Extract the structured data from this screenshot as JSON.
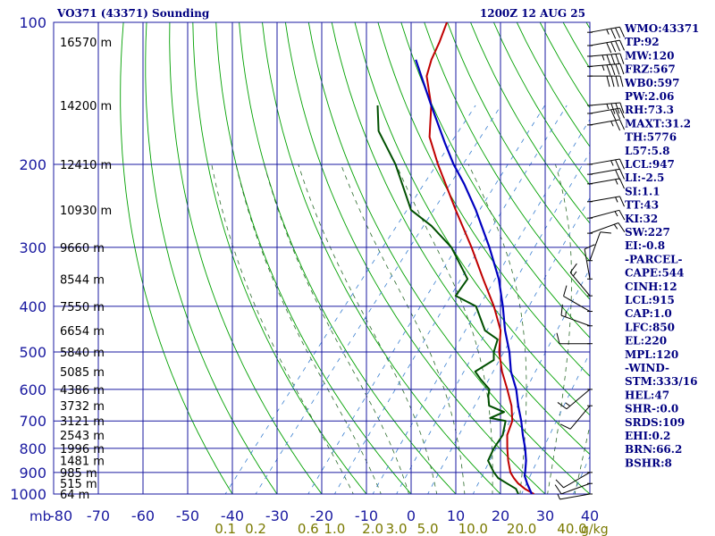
{
  "header": {
    "station": "VO371 (43371) Sounding",
    "time": "1200Z 12 AUG 25"
  },
  "colors": {
    "grid": "#1a1aa0",
    "pressure_label": "#1a1aa0",
    "height_label": "#000000",
    "dry_adiabat": "#00a000",
    "moist_adiabat": "#2a6a2a",
    "mixing_ratio": "#3a7fd0",
    "mixing_ratio_label": "#7a7a00",
    "temperature": "#c00000",
    "dewpoint": "#005000",
    "parcel": "#0000c0",
    "index_text": "#000080",
    "wind_barb": "#000000"
  },
  "chart_data": {
    "type": "line",
    "diagram": "skew-T log-P",
    "x_axis": {
      "unit": "°C",
      "corner_label": "mb",
      "ticks": [
        -80,
        -70,
        -60,
        -50,
        -40,
        -30,
        -20,
        -10,
        0,
        10,
        20,
        30,
        40
      ],
      "tick_labels": [
        "-80",
        "-70",
        "-60",
        "-50",
        "-40",
        "-30",
        "-20",
        "-10",
        "0",
        "10",
        "20",
        "30",
        "40"
      ]
    },
    "y_axis": {
      "unit": "hPa",
      "scale": "log",
      "range": [
        1000,
        100
      ],
      "ticks": [
        100,
        200,
        300,
        400,
        500,
        600,
        700,
        800,
        900,
        1000
      ],
      "tick_labels": [
        "100",
        "200",
        "300",
        "400",
        "500",
        "600",
        "700",
        "800",
        "900",
        "1000"
      ]
    },
    "height_labels": [
      {
        "p": 110,
        "text": "16570 m"
      },
      {
        "p": 150,
        "text": "14200 m"
      },
      {
        "p": 200,
        "text": "12410 m"
      },
      {
        "p": 250,
        "text": "10930 m"
      },
      {
        "p": 300,
        "text": "9660 m"
      },
      {
        "p": 350,
        "text": "8544 m"
      },
      {
        "p": 400,
        "text": "7550 m"
      },
      {
        "p": 450,
        "text": "6654 m"
      },
      {
        "p": 500,
        "text": "5840 m"
      },
      {
        "p": 550,
        "text": "5085 m"
      },
      {
        "p": 600,
        "text": "4386 m"
      },
      {
        "p": 650,
        "text": "3732 m"
      },
      {
        "p": 700,
        "text": "3121 m"
      },
      {
        "p": 750,
        "text": "2543 m"
      },
      {
        "p": 800,
        "text": "1996 m"
      },
      {
        "p": 850,
        "text": "1481 m"
      },
      {
        "p": 900,
        "text": "985 m"
      },
      {
        "p": 950,
        "text": "515 m"
      },
      {
        "p": 1000,
        "text": "64 m"
      }
    ],
    "mixing_ratio_labels": [
      {
        "w": 0.1,
        "text": "0.1"
      },
      {
        "w": 0.2,
        "text": "0.2"
      },
      {
        "w": 0.6,
        "text": "0.6"
      },
      {
        "w": 1.0,
        "text": "1.0"
      },
      {
        "w": 2.0,
        "text": "2.0"
      },
      {
        "w": 3.0,
        "text": "3.0"
      },
      {
        "w": 5.0,
        "text": "5.0"
      },
      {
        "w": 10.0,
        "text": "10.0"
      },
      {
        "w": 20.0,
        "text": "20.0"
      },
      {
        "w": 40.0,
        "text": "40.0"
      }
    ],
    "mixing_ratio_unit": "g/kg",
    "series": [
      {
        "key": "temperature",
        "points": [
          [
            1000,
            27.5
          ],
          [
            975,
            24.5
          ],
          [
            950,
            22.0
          ],
          [
            925,
            20.0
          ],
          [
            900,
            18.2
          ],
          [
            850,
            15.5
          ],
          [
            800,
            13.0
          ],
          [
            750,
            10.5
          ],
          [
            700,
            9.0
          ],
          [
            650,
            6.0
          ],
          [
            600,
            2.0
          ],
          [
            550,
            -2.5
          ],
          [
            500,
            -6.8
          ],
          [
            450,
            -10.5
          ],
          [
            400,
            -16.5
          ],
          [
            350,
            -24.0
          ],
          [
            300,
            -32.5
          ],
          [
            250,
            -43.0
          ],
          [
            200,
            -55.5
          ],
          [
            175,
            -62.5
          ],
          [
            150,
            -68.0
          ],
          [
            130,
            -74.5
          ],
          [
            120,
            -76.5
          ],
          [
            110,
            -78.0
          ],
          [
            100,
            -80.0
          ]
        ]
      },
      {
        "key": "dewpoint",
        "points": [
          [
            1000,
            24.0
          ],
          [
            975,
            22.5
          ],
          [
            950,
            19.5
          ],
          [
            925,
            16.5
          ],
          [
            900,
            14.5
          ],
          [
            850,
            11.0
          ],
          [
            800,
            10.0
          ],
          [
            750,
            9.5
          ],
          [
            700,
            7.5
          ],
          [
            690,
            3.5
          ],
          [
            670,
            5.5
          ],
          [
            650,
            1.0
          ],
          [
            620,
            -1.0
          ],
          [
            600,
            -2.0
          ],
          [
            570,
            -6.0
          ],
          [
            550,
            -8.5
          ],
          [
            520,
            -6.5
          ],
          [
            500,
            -8.0
          ],
          [
            470,
            -9.5
          ],
          [
            450,
            -14.0
          ],
          [
            400,
            -20.5
          ],
          [
            380,
            -27.0
          ],
          [
            350,
            -27.5
          ],
          [
            300,
            -37.0
          ],
          [
            270,
            -45.5
          ],
          [
            250,
            -53.0
          ],
          [
            200,
            -65.0
          ],
          [
            170,
            -75.0
          ],
          [
            150,
            -80.0
          ]
        ]
      },
      {
        "key": "parcel",
        "points": [
          [
            1000,
            27.0
          ],
          [
            950,
            24.0
          ],
          [
            915,
            22.0
          ],
          [
            900,
            21.5
          ],
          [
            850,
            19.5
          ],
          [
            800,
            17.0
          ],
          [
            750,
            14.0
          ],
          [
            700,
            11.0
          ],
          [
            650,
            7.5
          ],
          [
            600,
            4.0
          ],
          [
            550,
            -0.5
          ],
          [
            500,
            -4.5
          ],
          [
            450,
            -9.5
          ],
          [
            400,
            -14.5
          ],
          [
            350,
            -20.5
          ],
          [
            300,
            -28.5
          ],
          [
            250,
            -38.5
          ],
          [
            220,
            -46.0
          ],
          [
            200,
            -52.0
          ],
          [
            180,
            -58.0
          ],
          [
            150,
            -68.0
          ],
          [
            120,
            -80.0
          ]
        ]
      }
    ],
    "wind_barbs": [
      {
        "p": 105,
        "dir": 80,
        "kt": 35
      },
      {
        "p": 112,
        "dir": 80,
        "kt": 40
      },
      {
        "p": 118,
        "dir": 85,
        "kt": 45
      },
      {
        "p": 124,
        "dir": 85,
        "kt": 45
      },
      {
        "p": 130,
        "dir": 90,
        "kt": 40
      },
      {
        "p": 150,
        "dir": 85,
        "kt": 35
      },
      {
        "p": 156,
        "dir": 80,
        "kt": 30
      },
      {
        "p": 165,
        "dir": 80,
        "kt": 25
      },
      {
        "p": 200,
        "dir": 80,
        "kt": 25
      },
      {
        "p": 210,
        "dir": 80,
        "kt": 20
      },
      {
        "p": 220,
        "dir": 80,
        "kt": 15
      },
      {
        "p": 240,
        "dir": 80,
        "kt": 15
      },
      {
        "p": 260,
        "dir": 75,
        "kt": 15
      },
      {
        "p": 280,
        "dir": 70,
        "kt": 15
      },
      {
        "p": 320,
        "dir": 20,
        "kt": 10
      },
      {
        "p": 350,
        "dir": 350,
        "kt": 10
      },
      {
        "p": 380,
        "dir": 320,
        "kt": 15
      },
      {
        "p": 410,
        "dir": 300,
        "kt": 10
      },
      {
        "p": 440,
        "dir": 290,
        "kt": 15
      },
      {
        "p": 480,
        "dir": 270,
        "kt": 10
      },
      {
        "p": 600,
        "dir": 230,
        "kt": 15
      },
      {
        "p": 650,
        "dir": 220,
        "kt": 10
      },
      {
        "p": 900,
        "dir": 240,
        "kt": 10
      },
      {
        "p": 950,
        "dir": 250,
        "kt": 10
      },
      {
        "p": 1000,
        "dir": 260,
        "kt": 5
      }
    ],
    "indices": [
      "WMO:43371",
      "TP:92",
      "MW:120",
      "FRZ:567",
      "WB0:597",
      "PW:2.06",
      "RH:73.3",
      "MAXT:31.2",
      "TH:5776",
      "L57:5.8",
      "LCL:947",
      "LI:-2.5",
      "SI:1.1",
      "TT:43",
      "KI:32",
      "SW:227",
      "EI:-0.8",
      "-PARCEL-",
      "CAPE:544",
      "CINH:12",
      "LCL:915",
      "CAP:1.0",
      "LFC:850",
      "EL:220",
      "MPL:120",
      "-WIND-",
      "STM:333/16",
      "HEL:47",
      "SHR-:0.0",
      "SRDS:109",
      "EHI:0.2",
      "BRN:66.2",
      "BSHR:8"
    ]
  }
}
